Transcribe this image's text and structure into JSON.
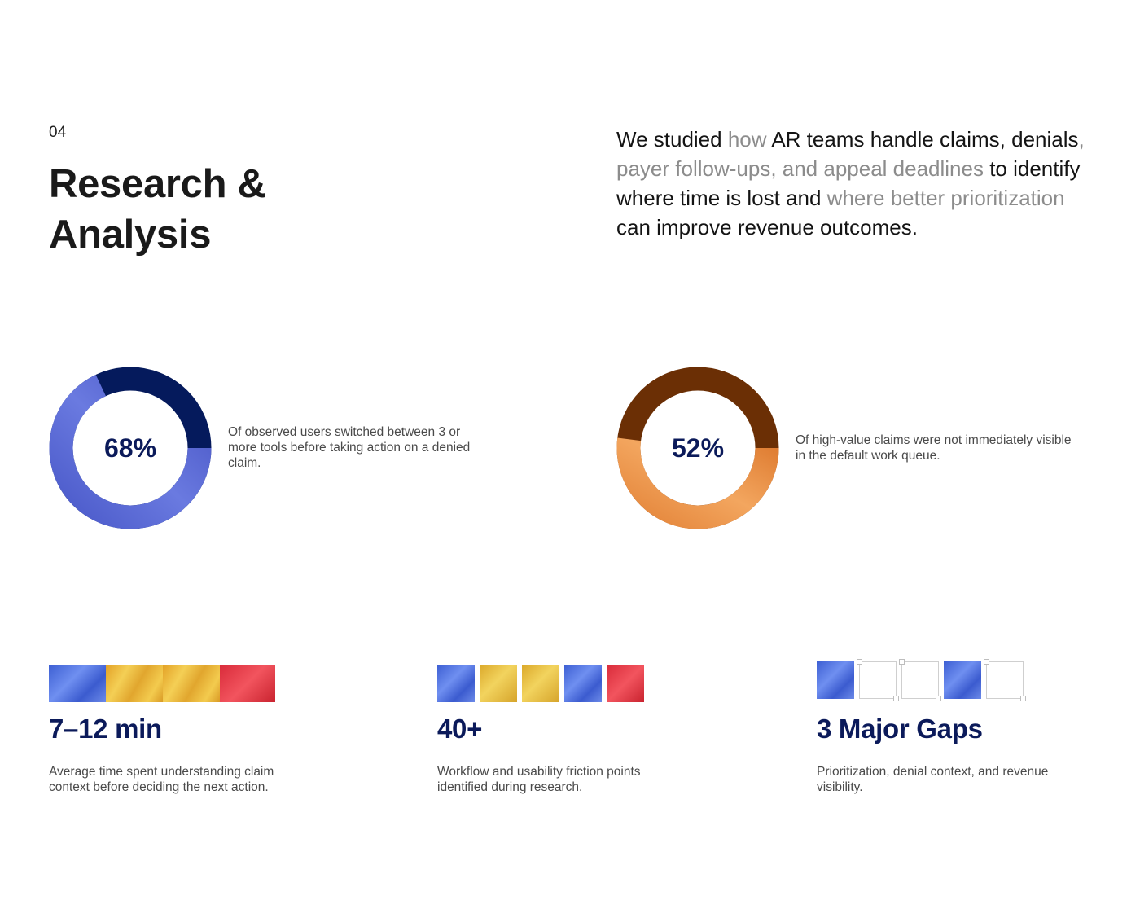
{
  "section": {
    "number": "04",
    "title": "Research & Analysis"
  },
  "intro": {
    "parts": [
      {
        "text": "We studied ",
        "muted": false
      },
      {
        "text": "how",
        "muted": true
      },
      {
        "text": " AR teams handle claims, denials",
        "muted": false
      },
      {
        "text": ", payer follow-ups, and appeal deadlines",
        "muted": true
      },
      {
        "text": " to identify where time is lost and ",
        "muted": false
      },
      {
        "text": "where better prioritization",
        "muted": true
      },
      {
        "text": " can improve revenue outcomes.",
        "muted": false
      }
    ]
  },
  "donuts": [
    {
      "value": "68%",
      "fraction": 0.68,
      "description": "Of observed users switched between 3 or more tools before taking action on a denied claim.",
      "colors": {
        "remaining": "#051a5c",
        "filled": "#4a59c9",
        "filled_light": "#6a7ae0"
      }
    },
    {
      "value": "52%",
      "fraction": 0.52,
      "description": "Of high-value claims were not immediately visible in the default work queue.",
      "colors": {
        "remaining": "#6b2f05",
        "filled": "#e4853a",
        "filled_light": "#f3a65f"
      }
    }
  ],
  "stats": [
    {
      "value": "7–12 min",
      "description": "Average time spent understanding claim context before deciding the next action.",
      "tiles": [
        "blue",
        "gold",
        "gold",
        "red"
      ]
    },
    {
      "value": "40+",
      "description": "Workflow and usability friction points identified during research.",
      "tiles": [
        "blue",
        "yellow",
        "yellow",
        "blue",
        "red"
      ]
    },
    {
      "value": "3 Major Gaps",
      "description": "Prioritization, denial context, and revenue visibility.",
      "tiles": [
        "blue",
        "empty",
        "empty",
        "blue",
        "empty"
      ]
    }
  ]
}
